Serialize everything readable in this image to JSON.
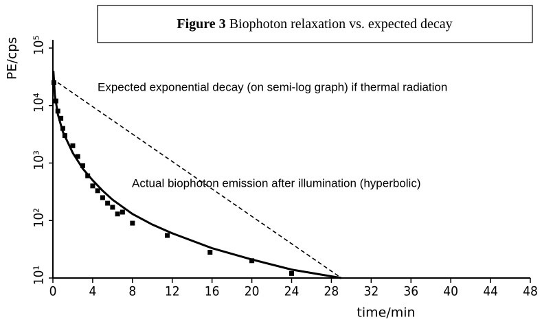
{
  "chart_data": {
    "type": "scatter",
    "figure_label": "Figure 3",
    "title": "Biophoton relaxation vs. expected decay",
    "xlabel": "time/min",
    "ylabel": "PE/cps",
    "annotations": [
      "Expected exponential decay (on semi-log graph) if thermal radiation",
      "Actual biophoton emission  after illumination (hyperbolic)"
    ],
    "xlim": [
      0,
      48
    ],
    "xticks": [
      0,
      4,
      8,
      12,
      16,
      20,
      24,
      28,
      32,
      36,
      40,
      44,
      48
    ],
    "ylim": [
      10,
      100000
    ],
    "ylog": true,
    "yticks": [
      {
        "value": 10,
        "label": "10¹"
      },
      {
        "value": 100,
        "label": "10²"
      },
      {
        "value": 1000,
        "label": "10³"
      },
      {
        "value": 10000,
        "label": "10⁴"
      },
      {
        "value": 100000,
        "label": "10⁵"
      }
    ],
    "series": [
      {
        "style": "markers",
        "color": "#000000",
        "x": [
          0.1,
          0.3,
          0.5,
          0.8,
          1,
          1.2,
          2,
          2.5,
          3,
          3.5,
          4,
          4.5,
          5,
          5.5,
          6,
          6.5,
          7,
          8,
          11.5,
          15.8,
          20,
          24
        ],
        "values": [
          25000,
          12000,
          8000,
          6000,
          4000,
          3000,
          2000,
          1300,
          900,
          600,
          400,
          330,
          250,
          200,
          170,
          130,
          140,
          90,
          55,
          28,
          20,
          12
        ]
      },
      {
        "style": "solid",
        "color": "#000000",
        "x": [
          0.05,
          0.2,
          0.5,
          1,
          2,
          3,
          4,
          5,
          6,
          8,
          10,
          12,
          16,
          20,
          24,
          29
        ],
        "values": [
          40000,
          15000,
          7000,
          3500,
          1500,
          800,
          500,
          330,
          230,
          130,
          85,
          60,
          33,
          21,
          14,
          10
        ]
      },
      {
        "style": "dashed",
        "color": "#000000",
        "x": [
          0.5,
          29
        ],
        "values": [
          25000,
          10
        ]
      }
    ]
  }
}
